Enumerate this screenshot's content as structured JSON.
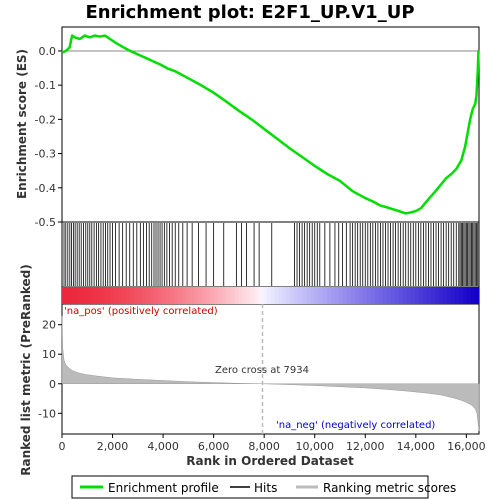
{
  "chart_data": {
    "type": "line",
    "title": "Enrichment plot: E2F1_UP.V1_UP",
    "xlabel": "Rank in Ordered Dataset",
    "ylabel_top": "Enrichment score (ES)",
    "ylabel_bottom": "Ranked list metric (PreRanked)",
    "x_max": 16500,
    "es_ylim": [
      -0.5,
      0.07
    ],
    "es_ticks": [
      "0.0",
      "-0.1",
      "-0.2",
      "-0.3",
      "-0.4",
      "-0.5"
    ],
    "es_tick_values": [
      0.0,
      -0.1,
      -0.2,
      -0.3,
      -0.4,
      -0.5
    ],
    "metric_ylim": [
      -17,
      27
    ],
    "metric_ticks": [
      "20",
      "10",
      "0",
      "-10"
    ],
    "metric_tick_values": [
      20,
      10,
      0,
      -10
    ],
    "x_ticks": [
      "0",
      "2,000",
      "4,000",
      "6,000",
      "8,000",
      "10,000",
      "12,000",
      "14,000",
      "16,000"
    ],
    "x_tick_values": [
      0,
      2000,
      4000,
      6000,
      8000,
      10000,
      12000,
      14000,
      16000
    ],
    "zero_cross": 7934,
    "zero_cross_label": "Zero cross at 7934",
    "pos_label": "'na_pos' (positively correlated)",
    "neg_label": "'na_neg' (negatively correlated)",
    "series": [
      {
        "name": "Enrichment profile",
        "color": "#00dd00",
        "x": [
          0,
          150,
          300,
          400,
          500,
          700,
          900,
          1100,
          1300,
          1500,
          1700,
          1900,
          2100,
          2400,
          2700,
          3000,
          3300,
          3600,
          3900,
          4200,
          4500,
          5000,
          5500,
          6000,
          6500,
          7000,
          7500,
          8000,
          8500,
          9000,
          9500,
          10000,
          10500,
          11000,
          11500,
          12000,
          12300,
          12600,
          12900,
          13200,
          13400,
          13600,
          13800,
          14000,
          14200,
          14400,
          14600,
          14800,
          15000,
          15200,
          15400,
          15600,
          15800,
          15950,
          16050,
          16150,
          16250,
          16350,
          16400,
          16450,
          16480
        ],
        "y": [
          -0.005,
          0.0,
          0.01,
          0.045,
          0.04,
          0.035,
          0.045,
          0.04,
          0.045,
          0.042,
          0.045,
          0.035,
          0.025,
          0.012,
          0.0,
          -0.01,
          -0.02,
          -0.03,
          -0.04,
          -0.052,
          -0.06,
          -0.08,
          -0.1,
          -0.122,
          -0.148,
          -0.175,
          -0.2,
          -0.228,
          -0.256,
          -0.284,
          -0.31,
          -0.336,
          -0.36,
          -0.38,
          -0.41,
          -0.43,
          -0.44,
          -0.452,
          -0.458,
          -0.465,
          -0.47,
          -0.475,
          -0.472,
          -0.468,
          -0.46,
          -0.442,
          -0.425,
          -0.408,
          -0.39,
          -0.372,
          -0.36,
          -0.345,
          -0.32,
          -0.28,
          -0.24,
          -0.2,
          -0.17,
          -0.155,
          -0.13,
          -0.06,
          0.002
        ]
      },
      {
        "name": "Hits",
        "color": "#000000",
        "positions": [
          80,
          150,
          230,
          310,
          380,
          450,
          520,
          600,
          680,
          760,
          850,
          940,
          1020,
          1100,
          1180,
          1270,
          1360,
          1450,
          1540,
          1630,
          1720,
          1810,
          1900,
          2000,
          2120,
          2260,
          2400,
          2540,
          2680,
          2820,
          2960,
          3100,
          3220,
          3340,
          3450,
          3550,
          3640,
          3720,
          3800,
          3880,
          3960,
          4050,
          4150,
          4250,
          4360,
          4480,
          4620,
          4780,
          4950,
          5150,
          5400,
          5700,
          6000,
          6400,
          6900,
          7100,
          7300,
          7600,
          7800,
          8300,
          9200,
          9300,
          9400,
          9500,
          9600,
          9700,
          9800,
          9900,
          10000,
          10100,
          10200,
          10400,
          10600,
          10800,
          10950,
          11100,
          11250,
          11400,
          11500,
          11600,
          11700,
          11800,
          11900,
          12000,
          12100,
          12200,
          12300,
          12400,
          12500,
          12600,
          12700,
          12800,
          12900,
          13000,
          13100,
          13200,
          13300,
          13400,
          13500,
          13600,
          13700,
          13800,
          13900,
          14000,
          14100,
          14200,
          14300,
          14400,
          14500,
          14600,
          14700,
          14800,
          14900,
          15000,
          15100,
          15200,
          15300,
          15400,
          15500,
          15600,
          15700,
          15750,
          15800,
          15850,
          15900,
          15950,
          16000,
          16050,
          16100,
          16150,
          16200,
          16250,
          16300,
          16350,
          16400,
          16450
        ]
      },
      {
        "name": "Ranking metric scores",
        "color": "#bbbbbb",
        "x": [
          0,
          30,
          80,
          150,
          250,
          400,
          600,
          900,
          1300,
          2000,
          3000,
          4000,
          5000,
          6000,
          7000,
          7934,
          9000,
          10000,
          11000,
          12000,
          13000,
          13800,
          14500,
          15000,
          15500,
          15800,
          16000,
          16200,
          16350,
          16420,
          16460,
          16500
        ],
        "y": [
          23,
          12,
          8,
          6.5,
          5.5,
          4.5,
          3.8,
          3.2,
          2.7,
          2.0,
          1.5,
          1.1,
          0.7,
          0.4,
          0.15,
          0.0,
          -0.3,
          -0.6,
          -1.0,
          -1.4,
          -2.0,
          -2.6,
          -3.2,
          -3.8,
          -4.8,
          -5.6,
          -6.3,
          -7.2,
          -8.5,
          -10,
          -13,
          -16
        ]
      }
    ],
    "legend": {
      "placement": "bottom",
      "items": [
        "Enrichment profile",
        "Hits",
        "Ranking metric scores"
      ]
    }
  }
}
